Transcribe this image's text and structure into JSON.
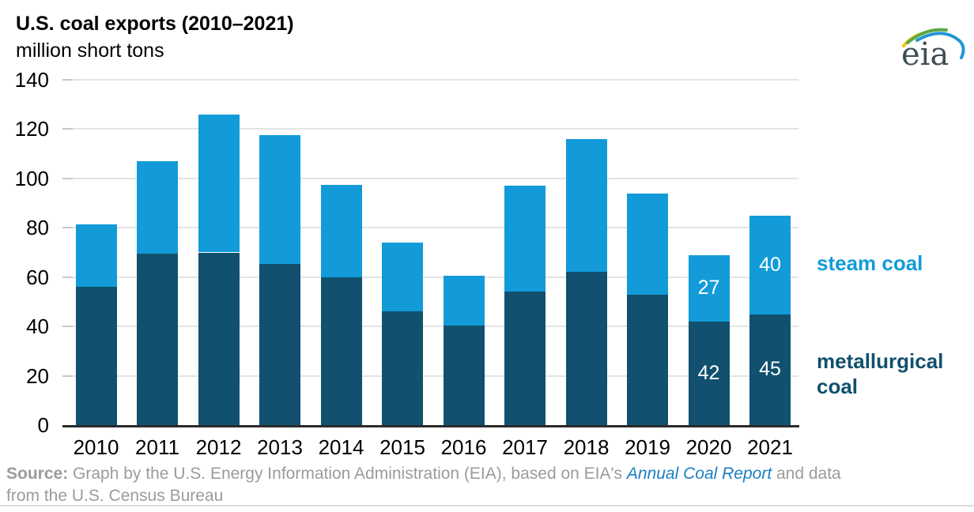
{
  "page": {
    "title": "U.S. coal exports (2010–2021)",
    "subtitle": "million short tons"
  },
  "logo": {
    "text": "eia"
  },
  "colors": {
    "steam": "#129bd8",
    "metallurgical": "#11506e",
    "gridline": "#e4e4e4",
    "axis_line": "#2b2b2b",
    "source_text": "#9b9b9b",
    "link": "#1b7ec2",
    "logo_text": "#3f4f57",
    "logo_yellow": "#f3c312",
    "logo_green": "#5ba845",
    "logo_blue": "#2196d4"
  },
  "legend": {
    "steam": "steam coal",
    "metallurgical": "metallurgical coal"
  },
  "chart_data": {
    "type": "bar",
    "stacked": true,
    "title": "U.S. coal exports (2010–2021)",
    "ylabel": "million short tons",
    "ylim": [
      0,
      140
    ],
    "yticks": [
      0,
      20,
      40,
      60,
      80,
      100,
      120,
      140
    ],
    "grid": "horizontal",
    "legend_position": "right",
    "categories": [
      "2010",
      "2011",
      "2012",
      "2013",
      "2014",
      "2015",
      "2016",
      "2017",
      "2018",
      "2019",
      "2020",
      "2021"
    ],
    "series": [
      {
        "name": "metallurgical coal",
        "color": "#11506e",
        "values": [
          56,
          69.5,
          70,
          65.5,
          60,
          46,
          40.5,
          54,
          62,
          53,
          42,
          45
        ],
        "labels": [
          "",
          "",
          "",
          "",
          "",
          "",
          "",
          "",
          "",
          "",
          "42",
          "45"
        ]
      },
      {
        "name": "steam coal",
        "color": "#129bd8",
        "values": [
          25.5,
          37.5,
          56,
          52,
          37.5,
          28,
          20,
          43,
          54,
          41,
          27,
          40
        ],
        "labels": [
          "",
          "",
          "",
          "",
          "",
          "",
          "",
          "",
          "",
          "",
          "27",
          "40"
        ]
      }
    ],
    "totals": [
      81.5,
      107,
      126,
      117.5,
      97.5,
      74,
      60.5,
      97,
      116,
      94,
      69,
      85
    ]
  },
  "source": {
    "segments": [
      {
        "text": "Source:",
        "style": "bold",
        "break_after": false
      },
      {
        "text": " Graph by the U.S. Energy Information Administration (EIA), based on EIA's ",
        "style": "normal",
        "break_after": false
      },
      {
        "text": "Annual Coal Report",
        "style": "link",
        "break_after": false
      },
      {
        "text": " and data",
        "style": "normal",
        "break_after": true
      },
      {
        "text": "from the U.S. Census Bureau",
        "style": "normal",
        "break_after": false
      }
    ]
  }
}
